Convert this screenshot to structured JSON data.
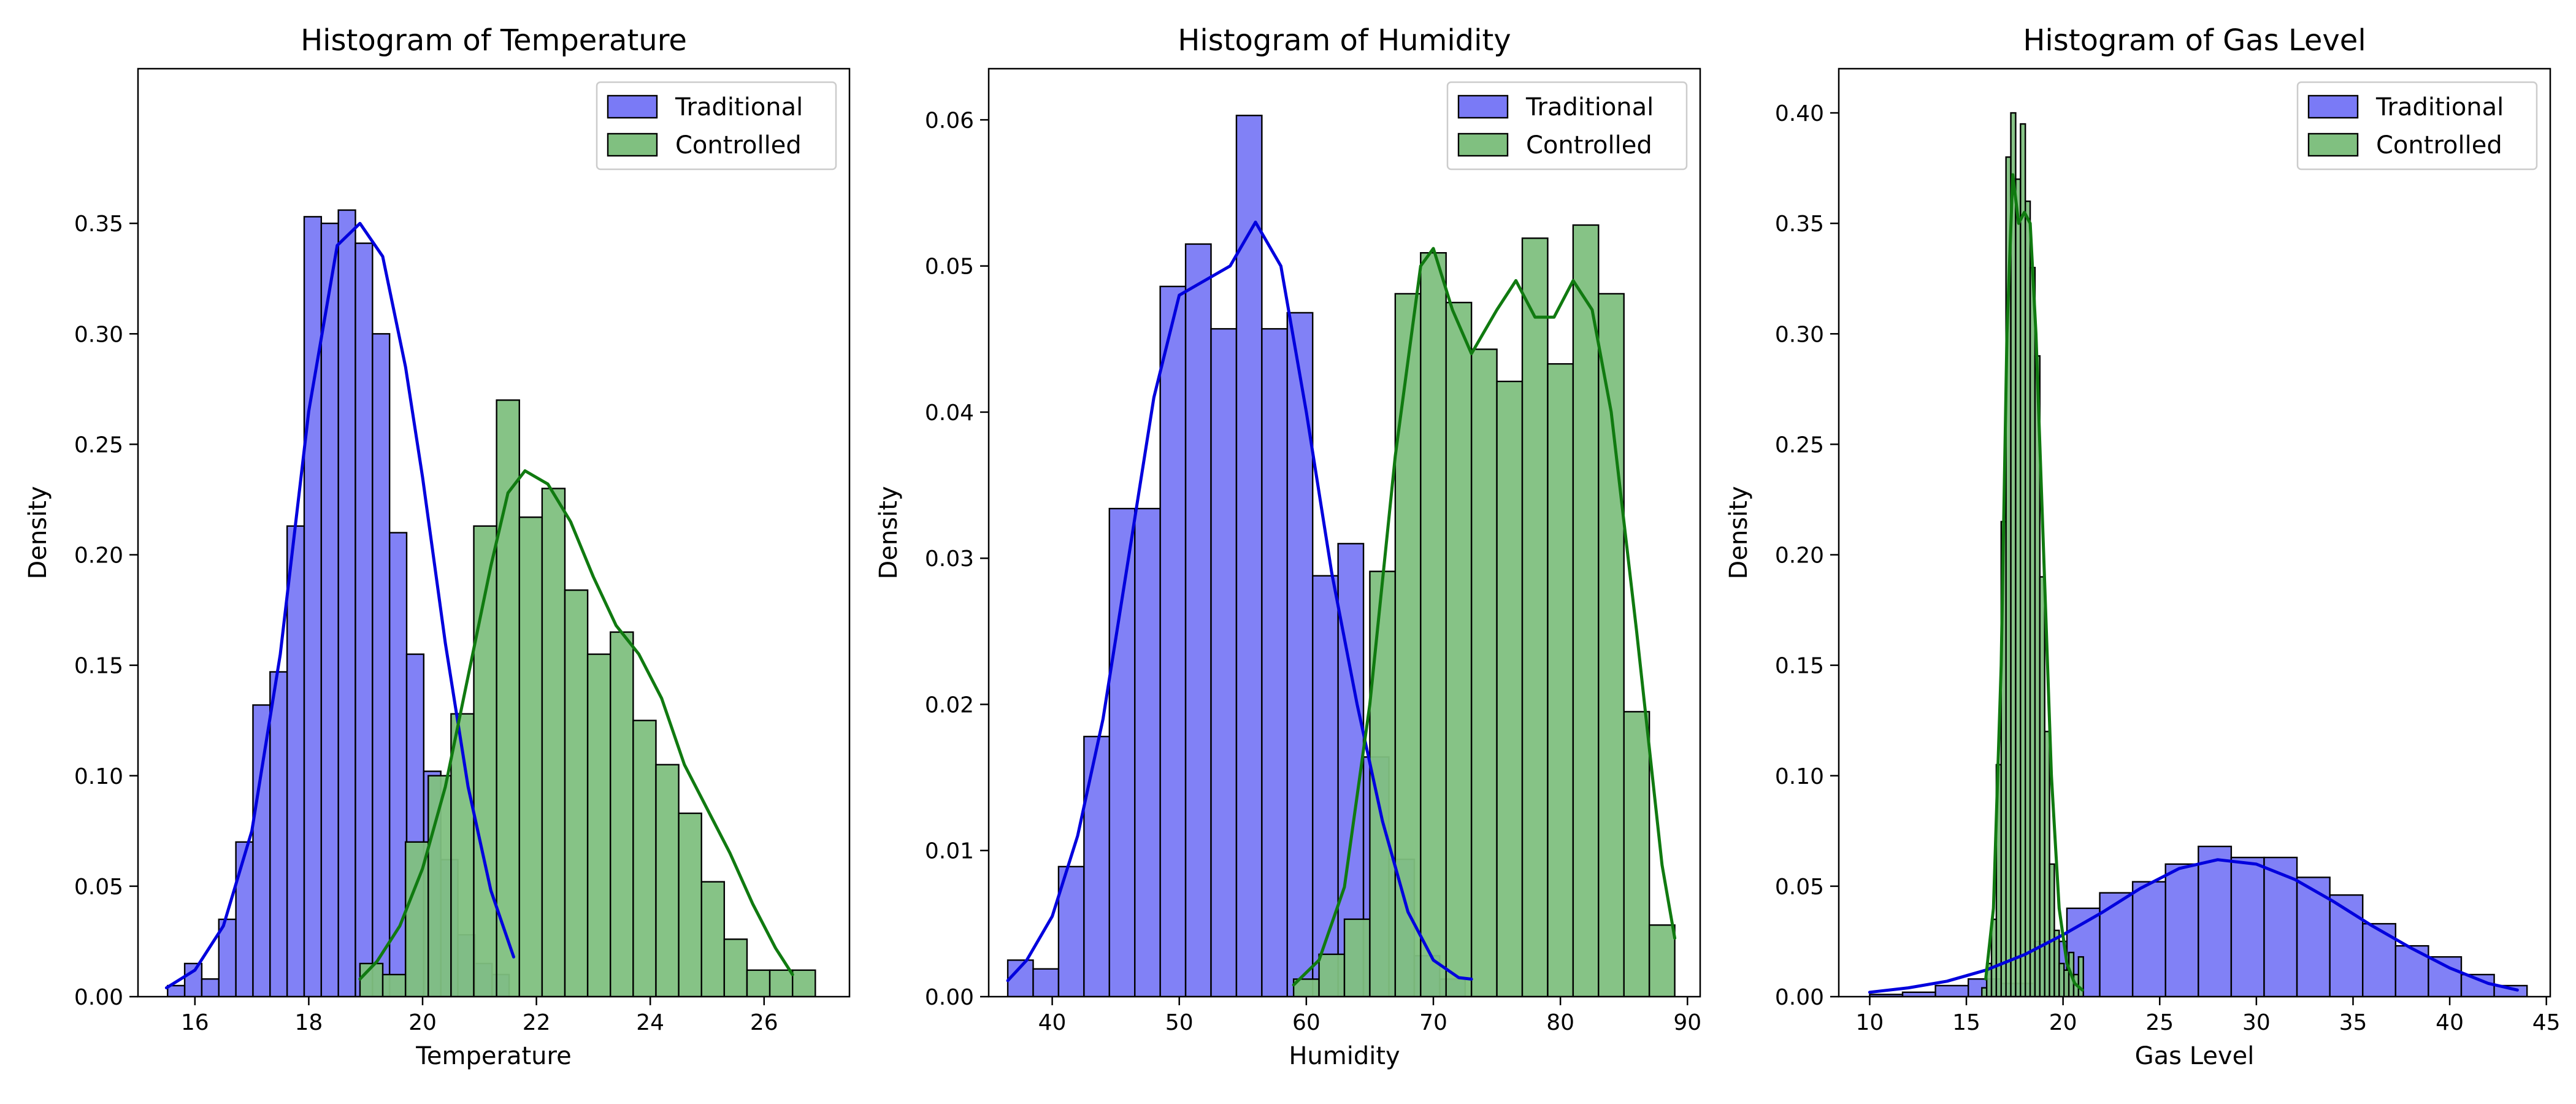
{
  "figure": {
    "background": "#ffffff"
  },
  "colors": {
    "traditional_fill": "#7a7af6",
    "traditional_kde": "#0000dd",
    "controlled_fill": "#80c080",
    "controlled_kde": "#107a10",
    "edge": "#000000"
  },
  "chart_data": [
    {
      "type": "histogram",
      "title": "Histogram of Temperature",
      "xlabel": "Temperature",
      "ylabel": "Density",
      "xlim": [
        15.0,
        27.5
      ],
      "ylim": [
        0,
        0.42
      ],
      "xticks": [
        16,
        18,
        20,
        22,
        24,
        26
      ],
      "yticks": [
        0.0,
        0.05,
        0.1,
        0.15,
        0.2,
        0.25,
        0.3,
        0.35
      ],
      "ytick_decimals": 2,
      "legend": "top-right",
      "series": [
        {
          "name": "Traditional",
          "color_key": "traditional",
          "bin_start": 15.52,
          "bin_width": 0.3,
          "density": [
            0.005,
            0.015,
            0.008,
            0.035,
            0.07,
            0.132,
            0.147,
            0.213,
            0.353,
            0.35,
            0.356,
            0.341,
            0.3,
            0.21,
            0.155,
            0.102,
            0.062,
            0.028,
            0.015,
            0.01
          ],
          "kde": [
            [
              15.5,
              0.004
            ],
            [
              16.0,
              0.012
            ],
            [
              16.5,
              0.032
            ],
            [
              17.0,
              0.075
            ],
            [
              17.5,
              0.155
            ],
            [
              18.0,
              0.265
            ],
            [
              18.5,
              0.34
            ],
            [
              18.9,
              0.35
            ],
            [
              19.3,
              0.335
            ],
            [
              19.7,
              0.285
            ],
            [
              20.0,
              0.235
            ],
            [
              20.4,
              0.16
            ],
            [
              20.8,
              0.095
            ],
            [
              21.2,
              0.048
            ],
            [
              21.6,
              0.018
            ]
          ]
        },
        {
          "name": "Controlled",
          "color_key": "controlled",
          "bin_start": 18.9,
          "bin_width": 0.4,
          "density": [
            0.015,
            0.01,
            0.07,
            0.1,
            0.128,
            0.213,
            0.27,
            0.217,
            0.23,
            0.184,
            0.155,
            0.165,
            0.125,
            0.105,
            0.083,
            0.052,
            0.026,
            0.012,
            0.012,
            0.012
          ],
          "kde": [
            [
              18.9,
              0.008
            ],
            [
              19.2,
              0.016
            ],
            [
              19.6,
              0.032
            ],
            [
              20.0,
              0.058
            ],
            [
              20.4,
              0.095
            ],
            [
              20.8,
              0.145
            ],
            [
              21.2,
              0.195
            ],
            [
              21.5,
              0.228
            ],
            [
              21.8,
              0.238
            ],
            [
              22.2,
              0.232
            ],
            [
              22.6,
              0.215
            ],
            [
              23.0,
              0.19
            ],
            [
              23.4,
              0.168
            ],
            [
              23.8,
              0.155
            ],
            [
              24.2,
              0.135
            ],
            [
              24.6,
              0.105
            ],
            [
              25.0,
              0.085
            ],
            [
              25.4,
              0.065
            ],
            [
              25.8,
              0.042
            ],
            [
              26.2,
              0.022
            ],
            [
              26.5,
              0.01
            ]
          ]
        }
      ]
    },
    {
      "type": "histogram",
      "title": "Histogram of Humidity",
      "xlabel": "Humidity",
      "ylabel": "Density",
      "xlim": [
        35,
        91
      ],
      "ylim": [
        0,
        0.0635
      ],
      "xticks": [
        40,
        50,
        60,
        70,
        80,
        90
      ],
      "yticks": [
        0.0,
        0.01,
        0.02,
        0.03,
        0.04,
        0.05,
        0.06
      ],
      "ytick_decimals": 2,
      "legend": "top-right",
      "series": [
        {
          "name": "Traditional",
          "color_key": "traditional",
          "bin_start": 36.5,
          "bin_width": 2.0,
          "density": [
            0.0025,
            0.0019,
            0.0089,
            0.0178,
            0.0334,
            0.0334,
            0.0486,
            0.0515,
            0.0457,
            0.0603,
            0.0457,
            0.0468,
            0.0288,
            0.031,
            0.0164,
            0.0094,
            0.0028,
            0.0012
          ],
          "kde": [
            [
              36.5,
              0.0011
            ],
            [
              38.0,
              0.0025
            ],
            [
              40.0,
              0.0055
            ],
            [
              42.0,
              0.011
            ],
            [
              44.0,
              0.019
            ],
            [
              46.0,
              0.03
            ],
            [
              48.0,
              0.041
            ],
            [
              50.0,
              0.048
            ],
            [
              52.0,
              0.049
            ],
            [
              54.0,
              0.05
            ],
            [
              56.0,
              0.053
            ],
            [
              58.0,
              0.05
            ],
            [
              60.0,
              0.04
            ],
            [
              62.0,
              0.029
            ],
            [
              64.0,
              0.02
            ],
            [
              66.0,
              0.012
            ],
            [
              68.0,
              0.0058
            ],
            [
              70.0,
              0.0025
            ],
            [
              72.0,
              0.0013
            ],
            [
              73.0,
              0.0012
            ]
          ]
        },
        {
          "name": "Controlled",
          "color_key": "controlled",
          "bin_start": 59.0,
          "bin_width": 2.0,
          "density": [
            0.0012,
            0.0029,
            0.0053,
            0.0291,
            0.0481,
            0.0509,
            0.0475,
            0.0443,
            0.0421,
            0.0519,
            0.0433,
            0.0528,
            0.0481,
            0.0195,
            0.0049
          ],
          "kde": [
            [
              59.0,
              0.0008
            ],
            [
              61.0,
              0.0025
            ],
            [
              63.0,
              0.0075
            ],
            [
              65.0,
              0.02
            ],
            [
              67.0,
              0.037
            ],
            [
              69.0,
              0.05
            ],
            [
              70.0,
              0.0512
            ],
            [
              71.5,
              0.047
            ],
            [
              73.0,
              0.044
            ],
            [
              75.0,
              0.047
            ],
            [
              76.5,
              0.049
            ],
            [
              78.0,
              0.0465
            ],
            [
              79.5,
              0.0465
            ],
            [
              81.0,
              0.049
            ],
            [
              82.5,
              0.047
            ],
            [
              84.0,
              0.04
            ],
            [
              86.0,
              0.025
            ],
            [
              88.0,
              0.009
            ],
            [
              89.0,
              0.004
            ]
          ]
        }
      ]
    },
    {
      "type": "histogram",
      "title": "Histogram of Gas Level",
      "xlabel": "Gas Level",
      "ylabel": "Density",
      "xlim": [
        8.4,
        45.2
      ],
      "ylim": [
        0,
        0.42
      ],
      "xticks": [
        10,
        15,
        20,
        25,
        30,
        35,
        40,
        45
      ],
      "yticks": [
        0.0,
        0.05,
        0.1,
        0.15,
        0.2,
        0.25,
        0.3,
        0.35,
        0.4
      ],
      "ytick_decimals": 2,
      "legend": "top-right",
      "series": [
        {
          "name": "Traditional",
          "color_key": "traditional",
          "bin_start": 10.0,
          "bin_width": 1.7,
          "density": [
            0.001,
            0.002,
            0.005,
            0.008,
            0.006,
            0.025,
            0.04,
            0.047,
            0.052,
            0.06,
            0.068,
            0.063,
            0.063,
            0.054,
            0.046,
            0.033,
            0.023,
            0.018,
            0.01,
            0.005
          ],
          "kde": [
            [
              10.0,
              0.002
            ],
            [
              12.0,
              0.004
            ],
            [
              14.0,
              0.007
            ],
            [
              16.0,
              0.012
            ],
            [
              18.0,
              0.019
            ],
            [
              20.0,
              0.028
            ],
            [
              22.0,
              0.038
            ],
            [
              24.0,
              0.049
            ],
            [
              26.0,
              0.058
            ],
            [
              28.0,
              0.062
            ],
            [
              30.0,
              0.06
            ],
            [
              32.0,
              0.053
            ],
            [
              34.0,
              0.043
            ],
            [
              36.0,
              0.032
            ],
            [
              38.0,
              0.022
            ],
            [
              40.0,
              0.013
            ],
            [
              42.0,
              0.006
            ],
            [
              43.5,
              0.003
            ]
          ]
        },
        {
          "name": "Controlled",
          "color_key": "controlled",
          "bin_start": 15.8,
          "bin_width": 0.25,
          "density": [
            0.004,
            0.015,
            0.035,
            0.105,
            0.215,
            0.38,
            0.4,
            0.37,
            0.395,
            0.36,
            0.33,
            0.29,
            0.19,
            0.12,
            0.06,
            0.03,
            0.015,
            0.012,
            0.02,
            0.01,
            0.018
          ],
          "kde": [
            [
              16.0,
              0.008
            ],
            [
              16.4,
              0.04
            ],
            [
              16.8,
              0.15
            ],
            [
              17.1,
              0.3
            ],
            [
              17.4,
              0.372
            ],
            [
              17.7,
              0.35
            ],
            [
              18.0,
              0.355
            ],
            [
              18.3,
              0.35
            ],
            [
              18.6,
              0.3
            ],
            [
              19.0,
              0.2
            ],
            [
              19.4,
              0.1
            ],
            [
              19.8,
              0.04
            ],
            [
              20.2,
              0.015
            ],
            [
              20.6,
              0.006
            ],
            [
              21.0,
              0.003
            ]
          ]
        }
      ]
    }
  ]
}
